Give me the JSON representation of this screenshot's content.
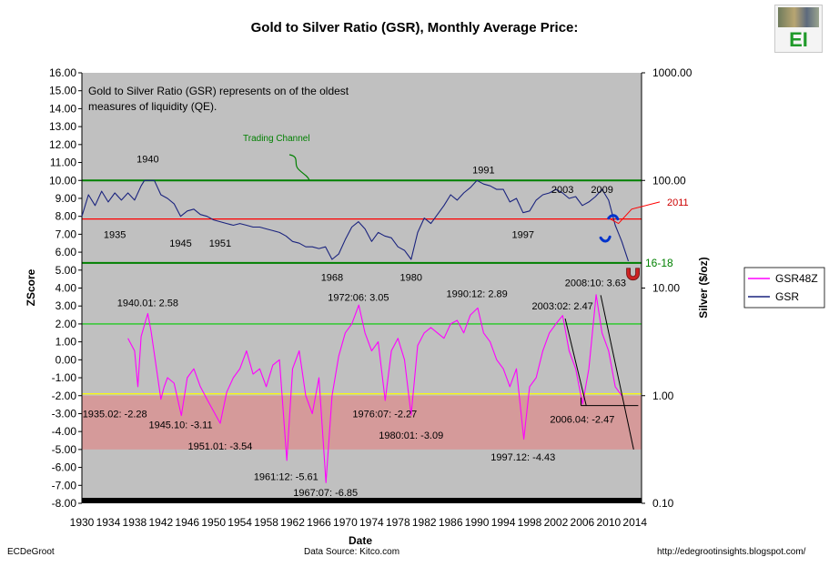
{
  "title": "Gold to Silver Ratio (GSR), Monthly Average Price:",
  "footer": {
    "left": "ECDeGroot",
    "center": "Data Source:  Kitco.com",
    "right": "http://edegrootinsights.blogspot.com/"
  },
  "logo": {
    "text": "EI"
  },
  "colors": {
    "plot_bg": "#c0c0c0",
    "red_zone": "#d59a9a",
    "gsr": "#1a237e",
    "gsr48z": "#ff00ff",
    "channel": "#008000",
    "red_line": "#ff0000",
    "blue_marks": "#0033cc",
    "yellow_line": "#ffff00",
    "green_line": "#00cc00"
  },
  "chart_data": {
    "type": "line",
    "xlabel": "Date",
    "ylabel": "ZScore",
    "y2label": "Silver ($/oz)",
    "xlim": [
      1930,
      2015
    ],
    "ylim": [
      -8,
      16
    ],
    "x_ticks": [
      "1930",
      "1934",
      "1938",
      "1942",
      "1946",
      "1950",
      "1954",
      "1958",
      "1962",
      "1966",
      "1970",
      "1974",
      "1978",
      "1982",
      "1986",
      "1990",
      "1994",
      "1998",
      "2002",
      "2006",
      "2010",
      "2014"
    ],
    "y_ticks": [
      "16.00",
      "15.00",
      "14.00",
      "13.00",
      "12.00",
      "11.00",
      "10.00",
      "9.00",
      "8.00",
      "7.00",
      "6.00",
      "5.00",
      "4.00",
      "3.00",
      "2.00",
      "1.00",
      "0.00",
      "-1.00",
      "-2.00",
      "-3.00",
      "-4.00",
      "-5.00",
      "-6.00",
      "-7.00",
      "-8.00"
    ],
    "y2_ticks": [
      {
        "label": "1000.00",
        "z": 16
      },
      {
        "label": "100.00",
        "z": 10
      },
      {
        "label": "10.00",
        "z": 4
      },
      {
        "label": "1.00",
        "z": -2
      },
      {
        "label": "0.10",
        "z": -8
      }
    ],
    "legend": {
      "position": "right",
      "entries": [
        "GSR48Z",
        "GSR"
      ]
    },
    "note_lines": [
      "Gold to Silver Ratio (GSR) represents on of the oldest",
      "measures of liquidity (QE)."
    ],
    "trading_channel_label": "Trading Channel",
    "channel_lines": [
      10.0,
      5.4
    ],
    "red_line": 7.85,
    "red_line_label": "2011",
    "channel_bottom_label": "16-18",
    "green_threshold": 2.0,
    "yellow_threshold": -1.9,
    "red_zone": [
      -2.0,
      -5.0
    ],
    "series": [
      {
        "name": "GSR",
        "x": [
          1930,
          1931,
          1932,
          1933,
          1934,
          1935,
          1936,
          1937,
          1938,
          1939,
          1939.5,
          1940,
          1941,
          1942,
          1943,
          1944,
          1945,
          1946,
          1947,
          1948,
          1949,
          1950,
          1951,
          1952,
          1953,
          1954,
          1955,
          1956,
          1957,
          1958,
          1959,
          1960,
          1961,
          1962,
          1963,
          1964,
          1965,
          1966,
          1967,
          1968,
          1969,
          1970,
          1971,
          1972,
          1973,
          1974,
          1975,
          1976,
          1977,
          1978,
          1979,
          1980,
          1981,
          1982,
          1983,
          1984,
          1985,
          1986,
          1987,
          1988,
          1989,
          1990,
          1991,
          1992,
          1993,
          1994,
          1995,
          1996,
          1997,
          1998,
          1999,
          2000,
          2001,
          2002,
          2003,
          2004,
          2005,
          2006,
          2007,
          2008,
          2009,
          2010,
          2011,
          2012,
          2013
        ],
        "values": [
          8.0,
          9.2,
          8.6,
          9.4,
          8.8,
          9.3,
          8.9,
          9.3,
          8.9,
          9.7,
          10.0,
          10.0,
          10.0,
          9.2,
          9.0,
          8.7,
          8.0,
          8.3,
          8.4,
          8.1,
          8.0,
          7.8,
          7.7,
          7.6,
          7.5,
          7.6,
          7.5,
          7.4,
          7.4,
          7.3,
          7.2,
          7.1,
          6.9,
          6.6,
          6.5,
          6.3,
          6.3,
          6.2,
          6.3,
          5.6,
          5.9,
          6.7,
          7.4,
          7.7,
          7.3,
          6.6,
          7.1,
          6.9,
          6.8,
          6.3,
          6.1,
          5.6,
          7.1,
          7.9,
          7.6,
          8.1,
          8.6,
          9.2,
          8.9,
          9.3,
          9.6,
          10.0,
          9.8,
          9.7,
          9.5,
          9.5,
          8.8,
          9.0,
          8.2,
          8.3,
          8.9,
          9.2,
          9.3,
          9.5,
          9.3,
          9.0,
          9.1,
          8.6,
          8.8,
          9.1,
          9.5,
          8.9,
          7.5,
          6.6,
          5.5
        ]
      },
      {
        "name": "GSR48Z",
        "x": [
          1937,
          1938,
          1938.5,
          1939,
          1940.01,
          1940.5,
          1942,
          1942.5,
          1943,
          1944,
          1945.1,
          1946,
          1947,
          1948,
          1949,
          1951.01,
          1952,
          1953,
          1954,
          1955,
          1956,
          1957,
          1958,
          1959,
          1960,
          1961.12,
          1962,
          1963,
          1964,
          1965,
          1966,
          1967.07,
          1968,
          1969,
          1970,
          1971,
          1972.06,
          1973,
          1974,
          1975,
          1976.07,
          1977,
          1978,
          1979,
          1980.01,
          1981,
          1982,
          1983,
          1984,
          1985,
          1986,
          1987,
          1988,
          1989,
          1990.12,
          1991,
          1992,
          1993,
          1994,
          1995,
          1996,
          1997.12,
          1998,
          1999,
          2000,
          2001,
          2002,
          2003.02,
          2004,
          2005,
          2006.04,
          2007,
          2008.1,
          2009,
          2010,
          2011,
          2012
        ],
        "values": [
          1.2,
          0.5,
          -1.5,
          1.3,
          2.58,
          1.6,
          -2.2,
          -1.5,
          -1.0,
          -1.3,
          -3.11,
          -1.0,
          -0.5,
          -1.5,
          -2.2,
          -3.54,
          -1.8,
          -1.0,
          -0.5,
          0.5,
          -0.8,
          -0.5,
          -1.5,
          -0.3,
          0.0,
          -5.61,
          -0.5,
          0.5,
          -2.0,
          -3.0,
          -1.0,
          -6.85,
          -2.0,
          0.2,
          1.5,
          2.0,
          3.05,
          1.5,
          0.5,
          1.0,
          -2.27,
          0.5,
          1.2,
          0.0,
          -3.09,
          0.8,
          1.5,
          1.8,
          1.5,
          1.2,
          2.0,
          2.2,
          1.5,
          2.5,
          2.89,
          1.5,
          1.0,
          0.0,
          -0.5,
          -1.5,
          -0.5,
          -4.43,
          -1.5,
          -1.0,
          0.5,
          1.5,
          2.0,
          2.47,
          0.5,
          -0.5,
          -2.47,
          -0.5,
          3.63,
          1.5,
          0.5,
          -1.5,
          -2.0
        ]
      }
    ],
    "annotations": [
      {
        "text": "1935",
        "x": 1935,
        "y": 7.0
      },
      {
        "text": "1940",
        "x": 1940,
        "y": 11.2
      },
      {
        "text": "1945",
        "x": 1945,
        "y": 6.5
      },
      {
        "text": "1951",
        "x": 1951,
        "y": 6.5
      },
      {
        "text": "1968",
        "x": 1968,
        "y": 4.6
      },
      {
        "text": "1980",
        "x": 1980,
        "y": 4.6
      },
      {
        "text": "1991",
        "x": 1991,
        "y": 10.6
      },
      {
        "text": "1997",
        "x": 1997,
        "y": 7.0
      },
      {
        "text": "2003",
        "x": 2003,
        "y": 9.5
      },
      {
        "text": "2009",
        "x": 2009,
        "y": 9.5
      },
      {
        "text": "1940.01: 2.58",
        "x": 1940,
        "y": 3.2
      },
      {
        "text": "1972:06: 3.05",
        "x": 1972,
        "y": 3.5
      },
      {
        "text": "1990:12: 2.89",
        "x": 1990,
        "y": 3.7
      },
      {
        "text": "2003:02: 2.47",
        "x": 2003,
        "y": 3.0
      },
      {
        "text": "2008:10: 3.63",
        "x": 2008,
        "y": 4.3
      },
      {
        "text": "1935.02: -2.28",
        "x": 1935,
        "y": -3.0
      },
      {
        "text": "1945.10: -3.11",
        "x": 1945,
        "y": -3.6
      },
      {
        "text": "1951.01: -3.54",
        "x": 1951,
        "y": -4.8
      },
      {
        "text": "1961:12: -5.61",
        "x": 1961,
        "y": -6.5
      },
      {
        "text": "1967:07: -6.85",
        "x": 1967,
        "y": -7.4
      },
      {
        "text": "1976:07: -2.27",
        "x": 1976,
        "y": -3.0
      },
      {
        "text": "1980:01: -3.09",
        "x": 1980,
        "y": -4.2
      },
      {
        "text": "1997.12: -4.43",
        "x": 1997,
        "y": -5.4
      },
      {
        "text": "2006.04: -2.47",
        "x": 2006,
        "y": -3.3
      }
    ]
  }
}
